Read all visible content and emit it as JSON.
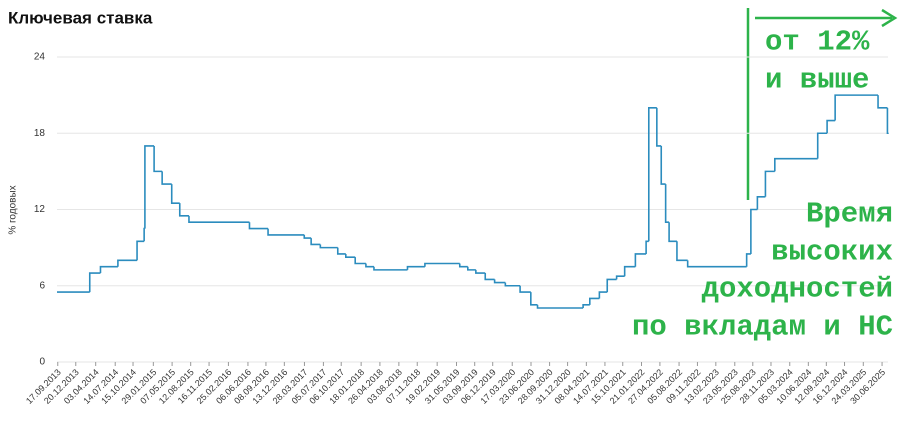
{
  "chart_data": {
    "type": "line",
    "step": true,
    "title": "Ключевая ставка",
    "y_label": "% годовых",
    "ylim": [
      0,
      24
    ],
    "yticks": [
      0,
      6,
      12,
      18,
      24
    ],
    "grid": true,
    "xticks": [
      "17.09.2013",
      "20.12.2013",
      "03.04.2014",
      "14.07.2014",
      "15.10.2014",
      "29.01.2015",
      "07.05.2015",
      "12.08.2015",
      "16.11.2015",
      "25.02.2016",
      "06.06.2016",
      "08.09.2016",
      "13.12.2016",
      "28.03.2017",
      "05.07.2017",
      "06.10.2017",
      "18.01.2018",
      "26.04.2018",
      "03.08.2018",
      "07.11.2018",
      "19.02.2019",
      "31.05.2019",
      "03.09.2019",
      "06.12.2019",
      "17.03.2020",
      "23.06.2020",
      "28.09.2020",
      "31.12.2020",
      "08.04.2021",
      "14.07.2021",
      "15.10.2021",
      "21.01.2022",
      "27.04.2022",
      "05.08.2022",
      "09.11.2022",
      "13.02.2023",
      "23.05.2023",
      "25.08.2023",
      "28.11.2023",
      "05.03.2024",
      "10.06.2024",
      "12.09.2024",
      "16.12.2024",
      "24.03.2025",
      "30.06.2025"
    ],
    "series": [
      {
        "color": "#2b8cbe",
        "x": [
          "13.09.2013",
          "03.03.2014",
          "28.04.2014",
          "28.07.2014",
          "05.11.2014",
          "12.12.2014",
          "16.12.2014",
          "02.02.2015",
          "16.03.2015",
          "05.05.2015",
          "16.06.2015",
          "03.08.2015",
          "14.06.2016",
          "19.09.2016",
          "27.03.2017",
          "02.05.2017",
          "19.06.2017",
          "18.09.2017",
          "30.10.2017",
          "18.12.2017",
          "12.02.2018",
          "26.03.2018",
          "17.09.2018",
          "17.12.2018",
          "17.06.2019",
          "29.07.2019",
          "09.09.2019",
          "28.10.2019",
          "16.12.2019",
          "10.02.2020",
          "27.04.2020",
          "22.06.2020",
          "27.07.2020",
          "22.03.2021",
          "26.04.2021",
          "15.06.2021",
          "26.07.2021",
          "13.09.2021",
          "25.10.2021",
          "20.12.2021",
          "14.02.2022",
          "28.02.2022",
          "11.04.2022",
          "04.05.2022",
          "27.05.2022",
          "14.06.2022",
          "25.07.2022",
          "19.09.2022",
          "24.07.2023",
          "15.08.2023",
          "18.09.2023",
          "30.10.2023",
          "18.12.2023",
          "29.07.2024",
          "16.09.2024",
          "28.10.2024",
          "09.06.2025",
          "28.07.2025",
          "31.07.2025"
        ],
        "values": [
          5.5,
          7,
          7.5,
          8,
          9.5,
          10.5,
          17,
          15,
          14,
          12.5,
          11.5,
          11,
          10.5,
          10,
          9.75,
          9.25,
          9,
          8.5,
          8.25,
          7.75,
          7.5,
          7.25,
          7.5,
          7.75,
          7.5,
          7.25,
          7,
          6.5,
          6.25,
          6,
          5.5,
          4.5,
          4.25,
          4.5,
          5,
          5.5,
          6.5,
          6.75,
          7.5,
          8.5,
          9.5,
          20,
          17,
          14,
          11,
          9.5,
          8,
          7.5,
          8.5,
          12,
          13,
          15,
          16,
          18,
          19,
          21,
          20,
          18,
          18
        ]
      }
    ],
    "annotations": [
      "от 12%",
      "и выше",
      "Время",
      "высоких",
      "доходностей",
      "по вкладам и НС"
    ],
    "annotation_color": "#2db34a"
  }
}
